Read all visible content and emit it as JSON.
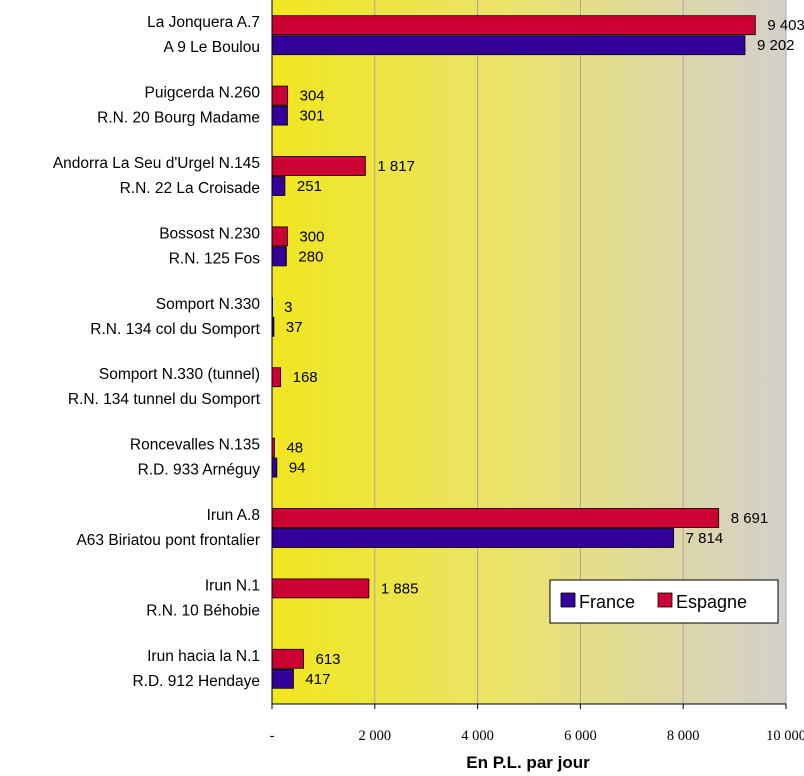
{
  "chart_data": {
    "type": "bar",
    "orientation": "horizontal",
    "xlabel": "En P.L.  par jour",
    "xlim": [
      0,
      10000
    ],
    "x_tick_values": [
      0,
      2000,
      4000,
      6000,
      8000,
      10000
    ],
    "x_tick_labels": [
      "-",
      "2 000",
      "4 000",
      "6 000",
      "8 000",
      "10 000"
    ],
    "grid": "vertical",
    "background": "gradient yellow to grey",
    "legend_position": "right",
    "categories": [
      {
        "spain_label": "La Jonquera A.7",
        "france_label": "A 9 Le Boulou"
      },
      {
        "spain_label": "Puigcerda N.260",
        "france_label": "R.N. 20 Bourg Madame"
      },
      {
        "spain_label": "Andorra La Seu d'Urgel N.145",
        "france_label": "R.N. 22 La Croisade"
      },
      {
        "spain_label": "Bossost N.230",
        "france_label": "R.N. 125 Fos"
      },
      {
        "spain_label": "Somport N.330",
        "france_label": "R.N. 134 col du Somport"
      },
      {
        "spain_label": "Somport N.330 (tunnel)",
        "france_label": "R.N. 134 tunnel du Somport"
      },
      {
        "spain_label": "Roncevalles N.135",
        "france_label": "R.D. 933 Arnéguy"
      },
      {
        "spain_label": "Irun A.8",
        "france_label": "A63 Biriatou pont frontalier"
      },
      {
        "spain_label": "Irun N.1",
        "france_label": "R.N. 10 Béhobie"
      },
      {
        "spain_label": "Irun hacia la N.1",
        "france_label": "R.D. 912 Hendaye"
      }
    ],
    "series": [
      {
        "name": "Espagne",
        "color": "#cc0033",
        "values": [
          9403,
          304,
          1817,
          300,
          3,
          168,
          48,
          8691,
          1885,
          613
        ],
        "labels": [
          "9 403",
          "304",
          "1 817",
          "300",
          "3",
          "168",
          "48",
          "8 691",
          "1 885",
          "613"
        ]
      },
      {
        "name": "France",
        "color": "#330099",
        "values": [
          9202,
          301,
          251,
          280,
          37,
          null,
          94,
          7814,
          null,
          417
        ],
        "labels": [
          "9 202",
          "301",
          "251",
          "280",
          "37",
          "",
          "94",
          "7 814",
          "",
          "417"
        ]
      }
    ],
    "legend": [
      "France",
      "Espagne"
    ]
  }
}
